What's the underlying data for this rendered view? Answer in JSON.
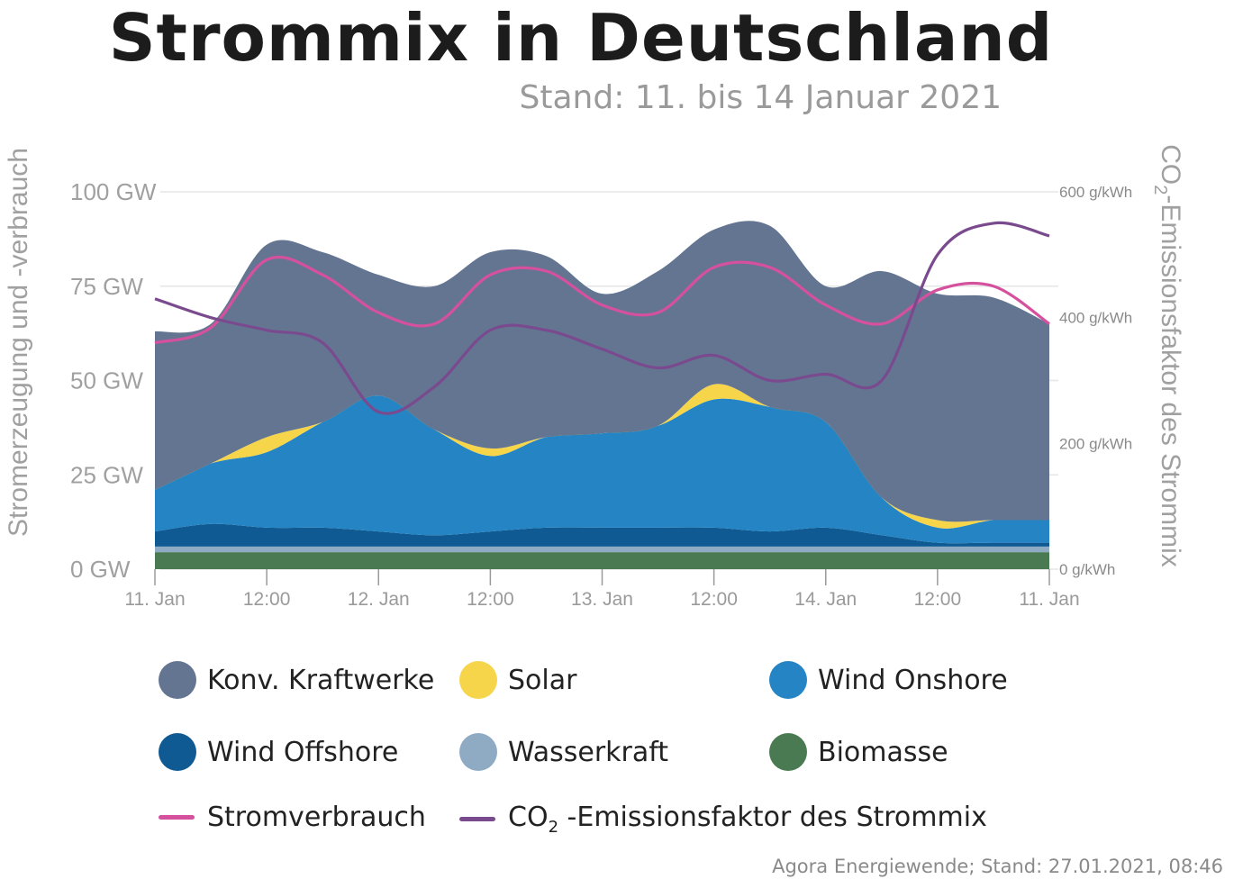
{
  "title": "Strommix in Deutschland",
  "subtitle": "Stand: 11. bis 14 Januar 2021",
  "source": "Agora Energiewende; Stand: 27.01.2021, 08:46",
  "chart_data": {
    "type": "area",
    "ylabel": "Stromerzeugung und -verbrauch",
    "y2label_prefix": "CO",
    "y2label_sub": "2",
    "y2label_rest": "-Emissionsfaktor des Strommix",
    "ylim": [
      0,
      100
    ],
    "y2lim": [
      0,
      600
    ],
    "yticks": [
      "0 GW",
      "25 GW",
      "50 GW",
      "75 GW",
      "100 GW"
    ],
    "y2ticks": [
      "0 g/kWh",
      "200 g/kWh",
      "400 g/kWh",
      "600 g/kWh"
    ],
    "xticks": [
      "11. Jan",
      "12:00",
      "12. Jan",
      "12:00",
      "13. Jan",
      "12:00",
      "14. Jan",
      "12:00",
      "11. Jan"
    ],
    "x_hours": [
      0,
      6,
      12,
      18,
      24,
      30,
      36,
      42,
      48,
      54,
      60,
      66,
      72,
      78,
      84,
      90,
      96
    ],
    "series": [
      {
        "name": "Biomasse",
        "key": "bio",
        "color": "#4a7a52",
        "values": [
          4.5,
          4.5,
          4.5,
          4.5,
          4.5,
          4.5,
          4.5,
          4.5,
          4.5,
          4.5,
          4.5,
          4.5,
          4.5,
          4.5,
          4.5,
          4.5,
          4.5
        ]
      },
      {
        "name": "Wasserkraft",
        "key": "hydro",
        "color": "#8fabc4",
        "values": [
          1.5,
          1.5,
          1.5,
          1.5,
          1.5,
          1.5,
          1.5,
          1.5,
          1.5,
          1.5,
          1.5,
          1.5,
          1.5,
          1.5,
          1.5,
          1.5,
          1.5
        ]
      },
      {
        "name": "Wind Offshore",
        "key": "offshore",
        "color": "#0f5a93",
        "values": [
          4,
          6,
          5,
          5,
          4,
          3,
          4,
          5,
          5,
          5,
          5,
          4,
          5,
          3,
          1,
          1,
          1
        ]
      },
      {
        "name": "Wind Onshore",
        "key": "onshore",
        "color": "#2484c4",
        "values": [
          11,
          16,
          20,
          28,
          36,
          28,
          20,
          24,
          25,
          27,
          34,
          33,
          28,
          10,
          4,
          6,
          6
        ]
      },
      {
        "name": "Solar",
        "key": "solar",
        "color": "#f6d54a",
        "values": [
          0,
          0,
          4,
          0,
          0,
          0,
          2,
          0,
          0,
          0,
          4,
          0,
          0,
          0,
          2,
          0,
          0
        ]
      },
      {
        "name": "Konv. Kraftwerke",
        "key": "konv",
        "color": "#647592",
        "values": [
          42,
          37,
          51,
          45,
          32,
          38,
          52,
          48,
          37,
          41,
          41,
          48,
          36,
          60,
          60,
          59,
          52
        ]
      }
    ],
    "lines": [
      {
        "name": "Stromverbrauch",
        "key": "verbrauch",
        "color": "#d5519e",
        "axis": "left",
        "values": [
          60,
          64,
          82,
          78,
          68,
          65,
          78,
          79,
          70,
          68,
          80,
          80,
          70,
          65,
          74,
          75,
          65
        ]
      },
      {
        "name": "CO₂ -Emissionsfaktor des Strommix",
        "key": "co2",
        "color": "#7a4a8e",
        "axis": "right",
        "values": [
          430,
          400,
          380,
          360,
          250,
          290,
          380,
          380,
          350,
          320,
          340,
          300,
          310,
          300,
          500,
          550,
          530
        ]
      }
    ]
  },
  "legend": {
    "konv": "Konv. Kraftwerke",
    "solar": "Solar",
    "onshore": "Wind Onshore",
    "offshore": "Wind Offshore",
    "hydro": "Wasserkraft",
    "bio": "Biomasse",
    "verbrauch": "Stromverbrauch",
    "co2_prefix": "CO",
    "co2_sub": "2",
    "co2_rest": " -Emissionsfaktor des Strommix"
  }
}
